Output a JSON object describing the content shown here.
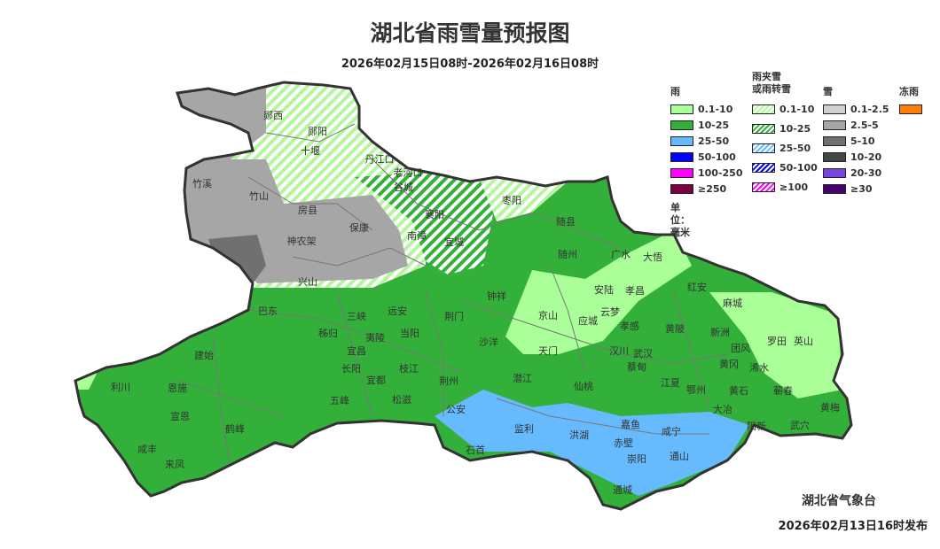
{
  "title": "湖北省雨雪量预报图",
  "subtitle": "2026年02月15日08时-2026年02月16日08时",
  "issuer": "湖北省气象台",
  "issued_time": "2026年02月13日16时发布",
  "legend": {
    "unit": "单位：毫米",
    "groups": [
      {
        "name": "雨",
        "items": [
          {
            "label": "0.1-10",
            "color": "#aaff99"
          },
          {
            "label": "10-25",
            "color": "#33b03a"
          },
          {
            "label": "25-50",
            "color": "#66bbff"
          },
          {
            "label": "50-100",
            "color": "#0000ff"
          },
          {
            "label": "100-250",
            "color": "#ff00ff"
          },
          {
            "label": "≥250",
            "color": "#7f0040"
          }
        ]
      },
      {
        "name": "雨夹雪\n或雨转雪",
        "hatched": true,
        "items": [
          {
            "label": "0.1-10",
            "color": "#aaff99"
          },
          {
            "label": "10-25",
            "color": "#33b03a"
          },
          {
            "label": "25-50",
            "color": "#66bbff"
          },
          {
            "label": "50-100",
            "color": "#0000ff"
          },
          {
            "label": "≥100",
            "color": "#ff00ff"
          }
        ]
      },
      {
        "name": "雪",
        "items": [
          {
            "label": "0.1-2.5",
            "color": "#d0d0d0"
          },
          {
            "label": "2.5-5",
            "color": "#a6a6a6"
          },
          {
            "label": "5-10",
            "color": "#707070"
          },
          {
            "label": "10-20",
            "color": "#454545"
          },
          {
            "label": "20-30",
            "color": "#7744dd"
          },
          {
            "label": "≥30",
            "color": "#4b0070"
          }
        ]
      },
      {
        "name": "冻雨",
        "items": [
          {
            "label": "",
            "color": "#ff8000"
          }
        ]
      }
    ]
  },
  "cities": [
    "郧西",
    "郧阳",
    "十堰",
    "丹江口",
    "老河口",
    "谷城",
    "枣阳",
    "竹溪",
    "竹山",
    "房县",
    "保康",
    "神农架",
    "南漳",
    "宜城",
    "襄阳",
    "随县",
    "随州",
    "广水",
    "大悟",
    "兴山",
    "安陆",
    "孝昌",
    "红安",
    "麻城",
    "巴东",
    "三峡",
    "远安",
    "荆门",
    "钟祥",
    "京山",
    "应城",
    "云梦",
    "孝感",
    "黄陂",
    "新洲",
    "罗田",
    "英山",
    "秭归",
    "夷陵",
    "当阳",
    "宜昌",
    "沙洋",
    "天门",
    "汉川",
    "武汉",
    "蔡甸",
    "团风",
    "黄冈",
    "浠水",
    "建始",
    "长阳",
    "枝江",
    "宜都",
    "潜江",
    "仙桃",
    "江夏",
    "鄂州",
    "黄石",
    "蕲春",
    "利川",
    "恩施",
    "荆州",
    "松滋",
    "五峰",
    "公安",
    "大冶",
    "黄梅",
    "宣恩",
    "监利",
    "洪湖",
    "嘉鱼",
    "咸宁",
    "阳新",
    "武穴",
    "鹤峰",
    "赤壁",
    "石首",
    "咸丰",
    "崇阳",
    "通山",
    "来凤",
    "通城"
  ]
}
